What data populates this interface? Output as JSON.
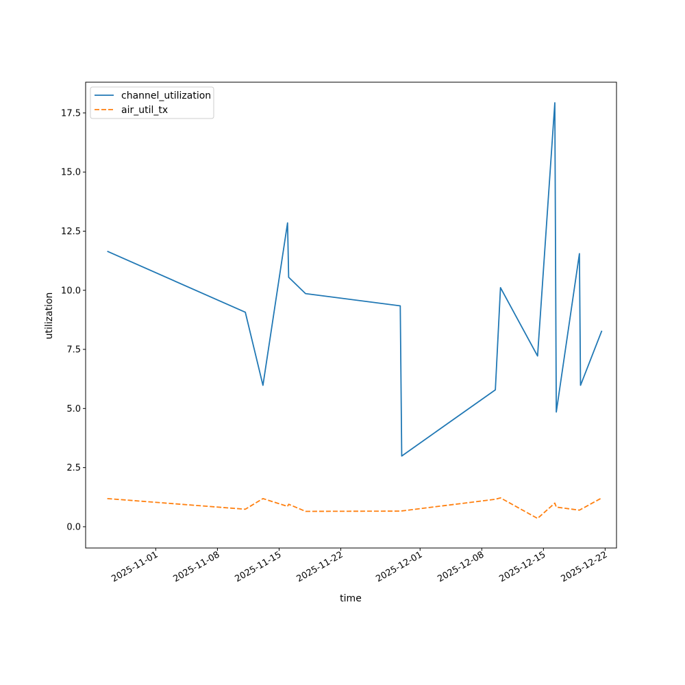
{
  "chart_data": {
    "type": "line",
    "title": "",
    "xlabel": "time",
    "ylabel": "utilization",
    "x_axis_type": "date",
    "xlim": [
      "2025-10-24T01:00",
      "2025-12-23T07:00"
    ],
    "ylim": [
      -0.9,
      18.8
    ],
    "xticks": [
      "2025-11-01",
      "2025-11-08",
      "2025-11-15",
      "2025-11-22",
      "2025-12-01",
      "2025-12-08",
      "2025-12-15",
      "2025-12-22"
    ],
    "yticks": [
      0.0,
      2.5,
      5.0,
      7.5,
      10.0,
      12.5,
      15.0,
      17.5
    ],
    "ytick_labels": [
      "0.0",
      "2.5",
      "5.0",
      "7.5",
      "10.0",
      "12.5",
      "15.0",
      "17.5"
    ],
    "grid": false,
    "legend": {
      "position": "top-left",
      "entries": [
        "channel_utilization",
        "air_util_tx"
      ]
    },
    "series": [
      {
        "name": "channel_utilization",
        "color": "#1f77b4",
        "style": "solid",
        "points": [
          {
            "x": "2025-10-26T12:00",
            "y": 11.65
          },
          {
            "x": "2025-11-11T04:00",
            "y": 9.07
          },
          {
            "x": "2025-11-13T04:00",
            "y": 5.98
          },
          {
            "x": "2025-11-15T23:00",
            "y": 12.85
          },
          {
            "x": "2025-11-16T02:00",
            "y": 10.55
          },
          {
            "x": "2025-11-18T00:00",
            "y": 9.86
          },
          {
            "x": "2025-11-28T18:00",
            "y": 9.34
          },
          {
            "x": "2025-11-28T22:00",
            "y": 2.99
          },
          {
            "x": "2025-12-09T13:00",
            "y": 5.79
          },
          {
            "x": "2025-12-10T03:00",
            "y": 10.11
          },
          {
            "x": "2025-12-14T08:00",
            "y": 7.22
          },
          {
            "x": "2025-12-16T07:00",
            "y": 17.93
          },
          {
            "x": "2025-12-16T11:00",
            "y": 4.85
          },
          {
            "x": "2025-12-19T02:00",
            "y": 11.55
          },
          {
            "x": "2025-12-19T05:00",
            "y": 5.98
          },
          {
            "x": "2025-12-21T15:00",
            "y": 8.29
          }
        ]
      },
      {
        "name": "air_util_tx",
        "color": "#ff7f0e",
        "style": "dashed",
        "points": [
          {
            "x": "2025-10-26T12:00",
            "y": 1.19
          },
          {
            "x": "2025-11-11T04:00",
            "y": 0.74
          },
          {
            "x": "2025-11-13T04:00",
            "y": 1.19
          },
          {
            "x": "2025-11-15T23:00",
            "y": 0.86
          },
          {
            "x": "2025-11-16T02:00",
            "y": 0.95
          },
          {
            "x": "2025-11-18T00:00",
            "y": 0.65
          },
          {
            "x": "2025-11-28T18:00",
            "y": 0.66
          },
          {
            "x": "2025-12-09T13:00",
            "y": 1.16
          },
          {
            "x": "2025-12-10T03:00",
            "y": 1.22
          },
          {
            "x": "2025-12-14T08:00",
            "y": 0.35
          },
          {
            "x": "2025-12-16T07:00",
            "y": 1.0
          },
          {
            "x": "2025-12-16T11:00",
            "y": 0.83
          },
          {
            "x": "2025-12-19T02:00",
            "y": 0.7
          },
          {
            "x": "2025-12-21T15:00",
            "y": 1.22
          }
        ]
      }
    ]
  }
}
